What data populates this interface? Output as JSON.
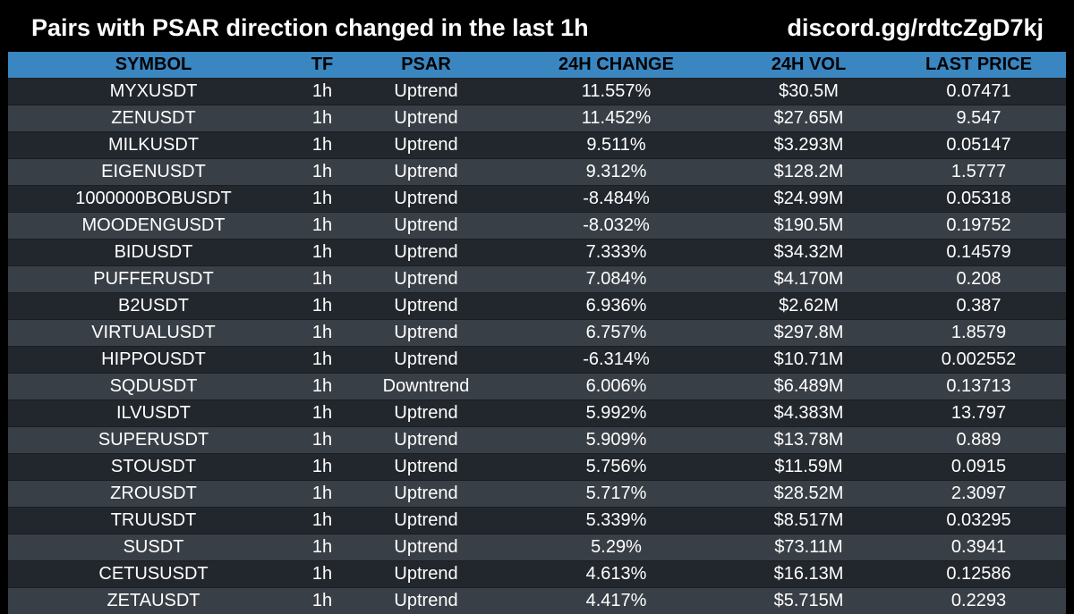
{
  "header": {
    "title": "Pairs with PSAR direction changed in the last 1h",
    "invite": "discord.gg/rdtcZgD7kj"
  },
  "colors": {
    "background": "#000000",
    "header_row": "#3a86c0",
    "row_dark": "#22272d",
    "row_light": "#393f46",
    "text": "#ffffff"
  },
  "table": {
    "columns": [
      "SYMBOL",
      "TF",
      "PSAR",
      "24H CHANGE",
      "24H VOL",
      "LAST PRICE"
    ],
    "rows": [
      {
        "symbol": "MYXUSDT",
        "tf": "1h",
        "psar": "Uptrend",
        "change": "11.557%",
        "vol": "$30.5M",
        "price": "0.07471"
      },
      {
        "symbol": "ZENUSDT",
        "tf": "1h",
        "psar": "Uptrend",
        "change": "11.452%",
        "vol": "$27.65M",
        "price": "9.547"
      },
      {
        "symbol": "MILKUSDT",
        "tf": "1h",
        "psar": "Uptrend",
        "change": "9.511%",
        "vol": "$3.293M",
        "price": "0.05147"
      },
      {
        "symbol": "EIGENUSDT",
        "tf": "1h",
        "psar": "Uptrend",
        "change": "9.312%",
        "vol": "$128.2M",
        "price": "1.5777"
      },
      {
        "symbol": "1000000BOBUSDT",
        "tf": "1h",
        "psar": "Uptrend",
        "change": "-8.484%",
        "vol": "$24.99M",
        "price": "0.05318"
      },
      {
        "symbol": "MOODENGUSDT",
        "tf": "1h",
        "psar": "Uptrend",
        "change": "-8.032%",
        "vol": "$190.5M",
        "price": "0.19752"
      },
      {
        "symbol": "BIDUSDT",
        "tf": "1h",
        "psar": "Uptrend",
        "change": "7.333%",
        "vol": "$34.32M",
        "price": "0.14579"
      },
      {
        "symbol": "PUFFERUSDT",
        "tf": "1h",
        "psar": "Uptrend",
        "change": "7.084%",
        "vol": "$4.170M",
        "price": "0.208"
      },
      {
        "symbol": "B2USDT",
        "tf": "1h",
        "psar": "Uptrend",
        "change": "6.936%",
        "vol": "$2.62M",
        "price": "0.387"
      },
      {
        "symbol": "VIRTUALUSDT",
        "tf": "1h",
        "psar": "Uptrend",
        "change": "6.757%",
        "vol": "$297.8M",
        "price": "1.8579"
      },
      {
        "symbol": "HIPPOUSDT",
        "tf": "1h",
        "psar": "Uptrend",
        "change": "-6.314%",
        "vol": "$10.71M",
        "price": "0.002552"
      },
      {
        "symbol": "SQDUSDT",
        "tf": "1h",
        "psar": "Downtrend",
        "change": "6.006%",
        "vol": "$6.489M",
        "price": "0.13713"
      },
      {
        "symbol": "ILVUSDT",
        "tf": "1h",
        "psar": "Uptrend",
        "change": "5.992%",
        "vol": "$4.383M",
        "price": "13.797"
      },
      {
        "symbol": "SUPERUSDT",
        "tf": "1h",
        "psar": "Uptrend",
        "change": "5.909%",
        "vol": "$13.78M",
        "price": "0.889"
      },
      {
        "symbol": "STOUSDT",
        "tf": "1h",
        "psar": "Uptrend",
        "change": "5.756%",
        "vol": "$11.59M",
        "price": "0.0915"
      },
      {
        "symbol": "ZROUSDT",
        "tf": "1h",
        "psar": "Uptrend",
        "change": "5.717%",
        "vol": "$28.52M",
        "price": "2.3097"
      },
      {
        "symbol": "TRUUSDT",
        "tf": "1h",
        "psar": "Uptrend",
        "change": "5.339%",
        "vol": "$8.517M",
        "price": "0.03295"
      },
      {
        "symbol": "SUSDT",
        "tf": "1h",
        "psar": "Uptrend",
        "change": "5.29%",
        "vol": "$73.11M",
        "price": "0.3941"
      },
      {
        "symbol": "CETUSUSDT",
        "tf": "1h",
        "psar": "Uptrend",
        "change": "4.613%",
        "vol": "$16.13M",
        "price": "0.12586"
      },
      {
        "symbol": "ZETAUSDT",
        "tf": "1h",
        "psar": "Uptrend",
        "change": "4.417%",
        "vol": "$5.715M",
        "price": "0.2293"
      }
    ]
  }
}
